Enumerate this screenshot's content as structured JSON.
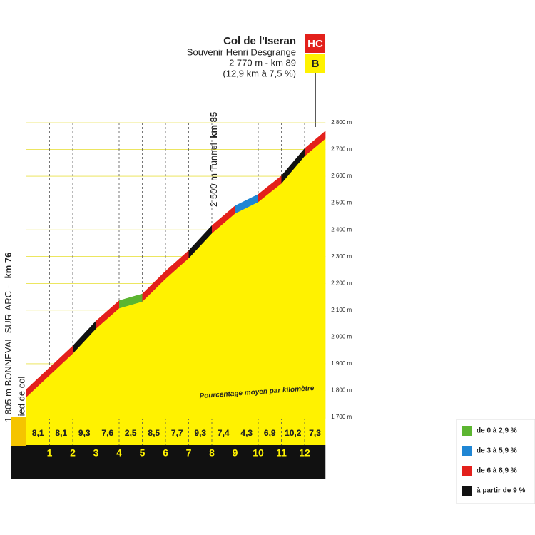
{
  "chart_data": {
    "type": "climb-profile",
    "title": "Col de l'Iseran",
    "subtitle": "Souvenir Henri Desgrange",
    "summit_info": "2 770 m - km 89",
    "summit_detail": "(12,9 km à 7,5 %)",
    "badges": [
      "HC",
      "B"
    ],
    "start_label": "1 805 m BONNEVAL-SUR-ARC - ",
    "start_km": "km 76",
    "start_sub": "Pied de col",
    "tunnel_label": "2 500 m Tunnel ",
    "tunnel_km": "km 85",
    "note": "Pourcentage moyen par kilomètre",
    "start_altitude": 1805,
    "xlim": [
      0,
      12.9
    ],
    "xticks": [
      1,
      2,
      3,
      4,
      5,
      6,
      7,
      8,
      9,
      10,
      11,
      12
    ],
    "ylim": [
      1700,
      2800
    ],
    "yticks": [
      {
        "value": 1700,
        "label": "1 700 m"
      },
      {
        "value": 1800,
        "label": "1 800 m"
      },
      {
        "value": 1900,
        "label": "1 900 m"
      },
      {
        "value": 2000,
        "label": "2 000 m"
      },
      {
        "value": 2100,
        "label": "2 100 m"
      },
      {
        "value": 2200,
        "label": "2 200 m"
      },
      {
        "value": 2300,
        "label": "2 300 m"
      },
      {
        "value": 2400,
        "label": "2 400 m"
      },
      {
        "value": 2500,
        "label": "2 500 m"
      },
      {
        "value": 2600,
        "label": "2 600 m"
      },
      {
        "value": 2700,
        "label": "2 700 m"
      },
      {
        "value": 2800,
        "label": "2 800 m"
      }
    ],
    "gradients": {
      "values": [
        8.1,
        8.1,
        9.3,
        7.6,
        2.5,
        8.5,
        7.7,
        9.3,
        7.4,
        4.3,
        6.9,
        10.2,
        7.3
      ],
      "value_labels": [
        "8,1",
        "8,1",
        "9,3",
        "7,6",
        "2,5",
        "8,5",
        "7,7",
        "9,3",
        "7,4",
        "4,3",
        "6,9",
        "10,2",
        "7,3"
      ]
    },
    "legend": [
      {
        "label": "de 0 à 2,9 %",
        "color": "#5cb531",
        "from": 0
      },
      {
        "label": "de 3 à 5,9 %",
        "color": "#1f86d4",
        "from": 3
      },
      {
        "label": "de 6 à 8,9 %",
        "color": "#e3201b",
        "from": 6
      },
      {
        "label": "à partir de 9 %",
        "color": "#111111",
        "from": 9
      }
    ]
  }
}
